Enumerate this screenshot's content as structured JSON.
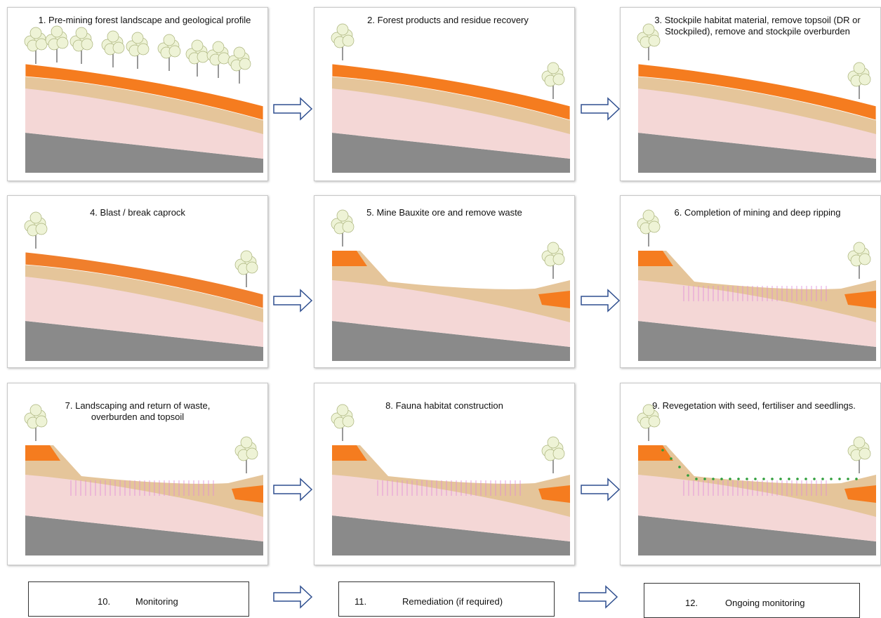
{
  "panels": [
    {
      "label": "1. Pre-mining forest landscape and geological profile"
    },
    {
      "label": "2. Forest products and residue recovery"
    },
    {
      "label": "3. Stockpile habitat material, remove topsoil (DR or Stockpiled), remove and stockpile overburden"
    },
    {
      "label": "4. Blast / break caprock"
    },
    {
      "label": "5. Mine Bauxite ore and remove waste"
    },
    {
      "label": "6. Completion of mining and deep ripping"
    },
    {
      "label": "7. Landscaping and return of waste, overburden and topsoil"
    },
    {
      "label": "8. Fauna habitat construction"
    },
    {
      "label": "9. Revegetation with seed, fertiliser and seedlings."
    }
  ],
  "steps": [
    {
      "number": "10.",
      "label": "Monitoring"
    },
    {
      "number": "11.",
      "label": "Remediation (if required)"
    },
    {
      "number": "12.",
      "label": "Ongoing monitoring"
    }
  ]
}
